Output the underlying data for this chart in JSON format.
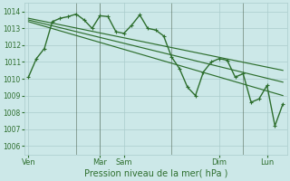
{
  "title": "Pression niveau de la mer( hPa )",
  "ylim": [
    1005.5,
    1014.5
  ],
  "background_color": "#cce8e8",
  "grid_color": "#aacccc",
  "line_color": "#2d6e2d",
  "tick_label_color": "#2d6e2d",
  "axis_label_color": "#2d6e2d",
  "x_ticks_pos": [
    0,
    36,
    54,
    72,
    108,
    144,
    180
  ],
  "x_tick_labels": [
    "Ven",
    "",
    "Mar",
    "Sam",
    "",
    "Dim",
    "Lun"
  ],
  "yticks": [
    1006,
    1007,
    1008,
    1009,
    1010,
    1011,
    1012,
    1013,
    1014
  ],
  "series_main": {
    "x": [
      0,
      6,
      12,
      18,
      24,
      30,
      36,
      42,
      48,
      54,
      60,
      66,
      72,
      78,
      84,
      90,
      96,
      102,
      108,
      114,
      120,
      126,
      132,
      138,
      144,
      150,
      156,
      162,
      168,
      174,
      180,
      186,
      192
    ],
    "y": [
      1010.1,
      1011.2,
      1011.8,
      1013.4,
      1013.6,
      1013.7,
      1013.85,
      1013.5,
      1013.0,
      1013.75,
      1013.7,
      1012.8,
      1012.7,
      1013.2,
      1013.8,
      1013.0,
      1012.9,
      1012.55,
      1011.3,
      1010.6,
      1009.5,
      1009.0,
      1010.4,
      1011.0,
      1011.2,
      1011.1,
      1010.1,
      1010.3,
      1008.6,
      1008.8,
      1009.6,
      1007.2,
      1008.5
    ],
    "linewidth": 1.0,
    "markersize": 2.8
  },
  "series_linear": [
    {
      "x": [
        0,
        192
      ],
      "y": [
        1013.6,
        1010.5
      ],
      "linewidth": 0.85
    },
    {
      "x": [
        0,
        192
      ],
      "y": [
        1013.5,
        1009.8
      ],
      "linewidth": 0.85
    },
    {
      "x": [
        0,
        192
      ],
      "y": [
        1013.4,
        1009.0
      ],
      "linewidth": 0.85
    }
  ],
  "vlines_x": [
    36,
    54,
    108,
    162
  ],
  "vline_color": "#4a5e4a",
  "vline_alpha": 0.6,
  "xlim": [
    -3,
    195
  ]
}
